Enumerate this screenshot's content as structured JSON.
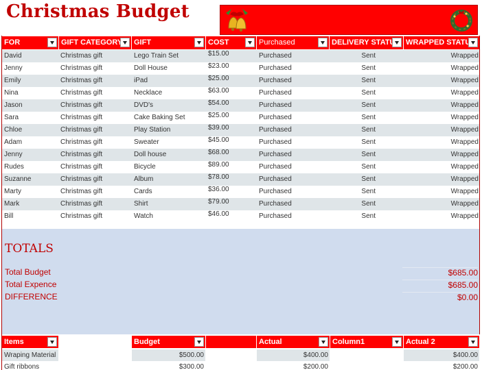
{
  "title": "Christmas Budget",
  "icons": {
    "left_banner": "christmas-bells-icon",
    "right_banner": "wreath-icon",
    "dropdown": "filter-dropdown-icon"
  },
  "colors": {
    "accent": "#ff0000",
    "title": "#c00000",
    "alt_row": "#dfe5e8",
    "totals_bg": "#d0dcee"
  },
  "table": {
    "headers": [
      "FOR",
      "GIFT CATEGORY",
      "GIFT",
      "COST",
      "Purchased",
      "DELIVERY STATUS",
      "WRAPPED STATUS"
    ],
    "rows": [
      [
        "David",
        "Christmas gift",
        "Lego Train Set",
        "$15.00",
        "Purchased",
        "Sent",
        "Wrapped"
      ],
      [
        "Jenny",
        "Christmas gift",
        "Doll House",
        "$23.00",
        "Purchased",
        "Sent",
        "Wrapped"
      ],
      [
        "Emily",
        "Christmas gift",
        "iPad",
        "$25.00",
        "Purchased",
        "Sent",
        "Wrapped"
      ],
      [
        "Nina",
        "Christmas gift",
        "Necklace",
        "$63.00",
        "Purchased",
        "Sent",
        "Wrapped"
      ],
      [
        "Jason",
        "Christmas gift",
        "DVD's",
        "$54.00",
        "Purchased",
        "Sent",
        "Wrapped"
      ],
      [
        "Sara",
        "Christmas gift",
        "Cake Baking Set",
        "$25.00",
        "Purchased",
        "Sent",
        "Wrapped"
      ],
      [
        "Chloe",
        "Christmas gift",
        "Play Station",
        "$39.00",
        "Purchased",
        "Sent",
        "Wrapped"
      ],
      [
        "Adam",
        "Christmas gift",
        "Sweater",
        "$45.00",
        "Purchased",
        "Sent",
        "Wrapped"
      ],
      [
        "Jenny",
        "Christmas gift",
        "Doll house",
        "$68.00",
        "Purchased",
        "Sent",
        "Wrapped"
      ],
      [
        "Rudes",
        "Christmas gift",
        "Bicycle",
        "$89.00",
        "Purchased",
        "Sent",
        "Wrapped"
      ],
      [
        "Suzanne",
        "Christmas gift",
        "Album",
        "$78.00",
        "Purchased",
        "Sent",
        "Wrapped"
      ],
      [
        "Marty",
        "Christmas gift",
        "Cards",
        "$36.00",
        "Purchased",
        "Sent",
        "Wrapped"
      ],
      [
        "Mark",
        "Christmas gift",
        "Shirt",
        "$79.00",
        "Purchased",
        "Sent",
        "Wrapped"
      ],
      [
        "Bill",
        "Christmas gift",
        "Watch",
        "$46.00",
        "Purchased",
        "Sent",
        "Wrapped"
      ]
    ]
  },
  "totals": {
    "heading": "TOTALS",
    "budget_label": "Total Budget",
    "budget_value": "$685.00",
    "expence_label": "Total Expence",
    "expence_value": "$685.00",
    "difference_label": "DIFFERENCE",
    "difference_value": "$0.00"
  },
  "budget_table": {
    "headers": {
      "items": "Items",
      "budget": "Budget",
      "actual": "Actual",
      "column1": "Column1",
      "actual2": "Actual 2"
    },
    "rows": [
      {
        "item": "Wraping Material",
        "budget": "$500.00",
        "actual": "$400.00",
        "actual2": "$400.00"
      },
      {
        "item": "Gift ribbons",
        "budget": "$300.00",
        "actual": "$200.00",
        "actual2": "$200.00"
      }
    ]
  }
}
